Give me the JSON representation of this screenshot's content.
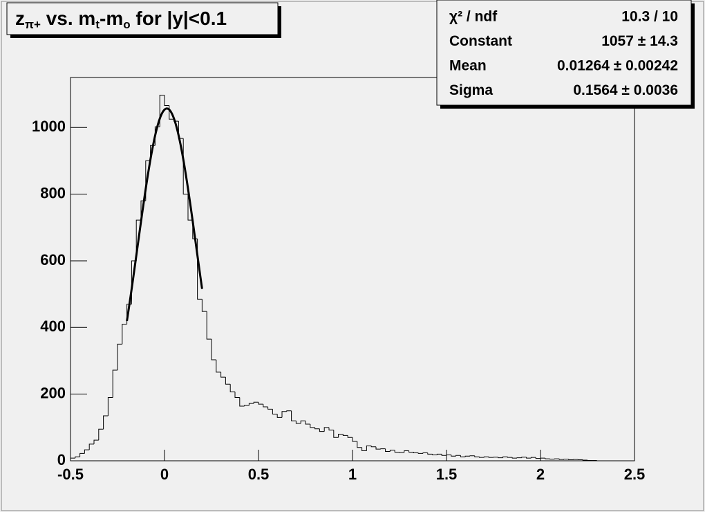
{
  "chart_data": {
    "type": "histogram",
    "title_parts": [
      "z",
      "π+",
      " vs. m",
      "t",
      "-m",
      "o",
      " for |y|<0.1"
    ],
    "stats": [
      {
        "label": "χ² / ndf",
        "value": "10.3 / 10"
      },
      {
        "label": "Constant",
        "value": "1057 ± 14.3"
      },
      {
        "label": "Mean",
        "value": "0.01264 ± 0.00242"
      },
      {
        "label": "Sigma",
        "value": "0.1564 ± 0.0036"
      }
    ],
    "fit": {
      "constant": 1057,
      "mean": 0.01264,
      "sigma": 0.1564,
      "xrange": [
        -0.2,
        0.2
      ],
      "color": "#000000"
    },
    "bins": [
      -0.5,
      -0.475,
      -0.45,
      -0.425,
      -0.4,
      -0.375,
      -0.35,
      -0.325,
      -0.3,
      -0.275,
      -0.25,
      -0.225,
      -0.2,
      -0.175,
      -0.15,
      -0.125,
      -0.1,
      -0.075,
      -0.05,
      -0.025,
      0,
      0.025,
      0.05,
      0.075,
      0.1,
      0.125,
      0.15,
      0.175,
      0.2,
      0.225,
      0.25,
      0.275,
      0.3,
      0.325,
      0.35,
      0.375,
      0.4,
      0.425,
      0.45,
      0.475,
      0.5,
      0.525,
      0.55,
      0.575,
      0.6,
      0.625,
      0.65,
      0.675,
      0.7,
      0.725,
      0.75,
      0.775,
      0.8,
      0.825,
      0.85,
      0.875,
      0.9,
      0.925,
      0.95,
      0.975,
      1,
      1.025,
      1.05,
      1.075,
      1.1,
      1.125,
      1.15,
      1.175,
      1.2,
      1.225,
      1.25,
      1.275,
      1.3,
      1.325,
      1.35,
      1.375,
      1.4,
      1.425,
      1.45,
      1.475,
      1.5,
      1.525,
      1.55,
      1.575,
      1.6,
      1.625,
      1.65,
      1.675,
      1.7,
      1.725,
      1.75,
      1.775,
      1.8,
      1.825,
      1.85,
      1.875,
      1.9,
      1.925,
      1.95,
      1.975,
      2,
      2.025,
      2.05,
      2.075,
      2.1,
      2.125,
      2.15,
      2.175,
      2.2,
      2.225,
      2.25,
      2.275,
      2.3,
      2.325,
      2.35,
      2.375,
      2.4,
      2.425,
      2.45,
      2.475,
      2.5
    ],
    "values": [
      8,
      12,
      22,
      33,
      50,
      62,
      95,
      135,
      190,
      272,
      350,
      410,
      470,
      600,
      722,
      780,
      900,
      946,
      1002,
      1097,
      1066,
      1025,
      1019,
      967,
      800,
      722,
      666,
      485,
      448,
      365,
      303,
      266,
      251,
      230,
      207,
      190,
      164,
      166,
      172,
      176,
      170,
      162,
      155,
      140,
      130,
      148,
      150,
      120,
      112,
      120,
      110,
      100,
      96,
      88,
      100,
      92,
      70,
      80,
      76,
      70,
      58,
      40,
      30,
      45,
      42,
      35,
      36,
      28,
      32,
      26,
      25,
      30,
      26,
      24,
      22,
      24,
      20,
      18,
      20,
      16,
      18,
      14,
      16,
      12,
      14,
      15,
      12,
      10,
      12,
      10,
      11,
      9,
      12,
      10,
      8,
      9,
      11,
      8,
      10,
      7,
      8,
      6,
      5,
      6,
      4,
      5,
      3,
      4,
      3,
      2,
      1,
      1,
      0,
      0,
      0,
      0,
      0,
      0,
      0,
      0
    ],
    "color": "#000000",
    "xlim": [
      -0.5,
      2.5
    ],
    "ylim": [
      0,
      1150
    ],
    "xticks": [
      -0.5,
      0,
      0.5,
      1,
      1.5,
      2,
      2.5
    ],
    "yticks": [
      0,
      200,
      400,
      600,
      800,
      1000
    ]
  }
}
